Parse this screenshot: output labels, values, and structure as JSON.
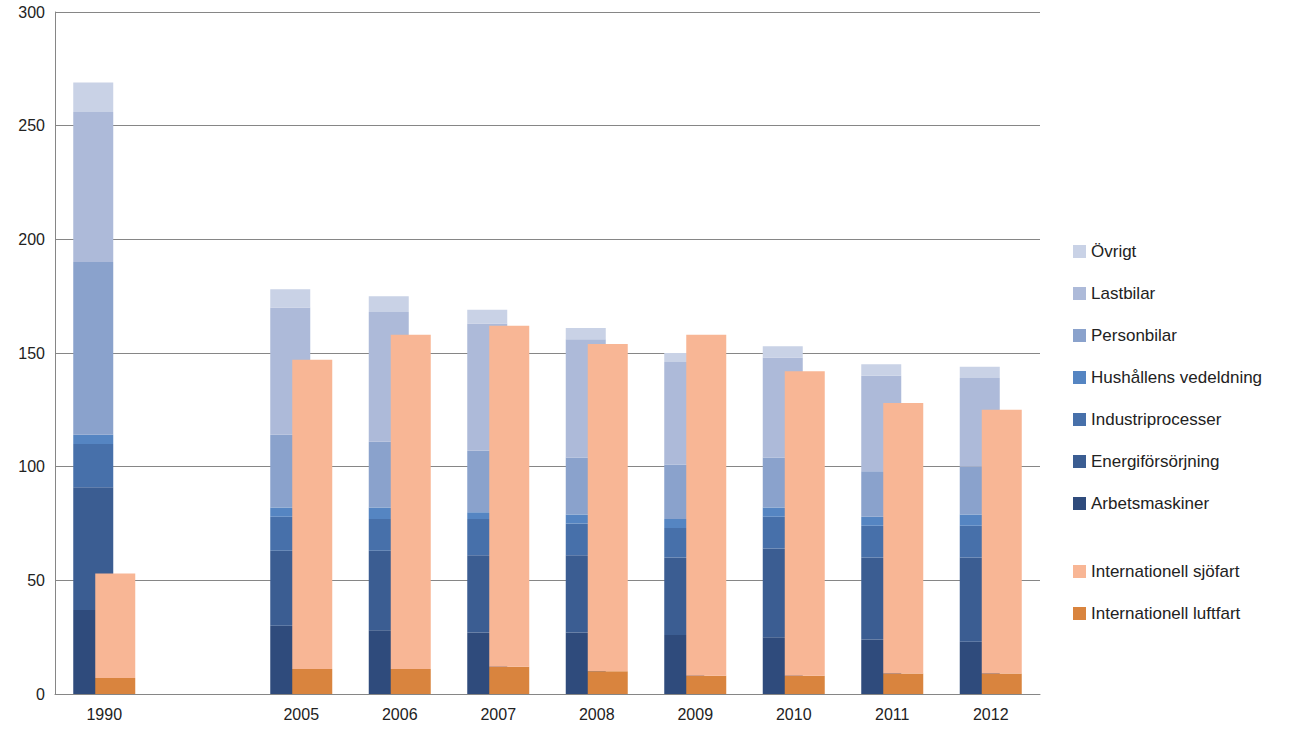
{
  "chart_data": {
    "type": "bar",
    "stacked": true,
    "grid": true,
    "legend": "right",
    "categories": [
      "1990",
      null,
      "2005",
      "2006",
      "2007",
      "2008",
      "2009",
      "2010",
      "2011",
      "2012"
    ],
    "ylim": [
      0,
      300
    ],
    "yticks": [
      0,
      50,
      100,
      150,
      200,
      250,
      300
    ],
    "series_groups": [
      [
        {
          "name": "Arbetsmaskiner",
          "color": "#2f4b7c",
          "values": [
            37,
            null,
            30,
            28,
            27,
            27,
            26,
            25,
            24,
            23
          ]
        },
        {
          "name": "Energiförsörjning",
          "color": "#3b5d92",
          "values": [
            54,
            null,
            33,
            35,
            34,
            34,
            34,
            39,
            36,
            37
          ]
        },
        {
          "name": "Industriprocesser",
          "color": "#4770aa",
          "values": [
            19,
            null,
            15,
            14,
            16,
            14,
            13,
            14,
            14,
            14
          ]
        },
        {
          "name": "Hushållens vedeldning",
          "color": "#5585c2",
          "values": [
            4,
            null,
            4,
            5,
            3,
            4,
            4,
            4,
            4,
            5
          ]
        },
        {
          "name": "Personbilar",
          "color": "#8aa2cc",
          "values": [
            76,
            null,
            32,
            29,
            27,
            25,
            24,
            22,
            20,
            21
          ]
        },
        {
          "name": "Lastbilar",
          "color": "#adbad9",
          "values": [
            66,
            null,
            56,
            57,
            56,
            52,
            45,
            44,
            42,
            39
          ]
        },
        {
          "name": "Övrigt",
          "color": "#c9d2e6",
          "values": [
            13,
            null,
            8,
            7,
            6,
            5,
            4,
            5,
            5,
            5
          ]
        }
      ],
      [
        {
          "name": "Internationell luftfart",
          "color": "#d9843e",
          "values": [
            7,
            null,
            11,
            11,
            12,
            10,
            8,
            8,
            9,
            9
          ]
        },
        {
          "name": "Internationell sjöfart",
          "color": "#f8b695",
          "values": [
            46,
            null,
            136,
            147,
            150,
            144,
            150,
            134,
            119,
            116
          ]
        }
      ]
    ]
  }
}
